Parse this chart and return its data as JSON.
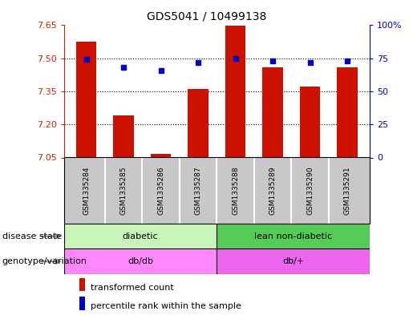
{
  "title": "GDS5041 / 10499138",
  "samples": [
    "GSM1335284",
    "GSM1335285",
    "GSM1335286",
    "GSM1335287",
    "GSM1335288",
    "GSM1335289",
    "GSM1335290",
    "GSM1335291"
  ],
  "transformed_count": [
    7.575,
    7.24,
    7.065,
    7.36,
    7.648,
    7.46,
    7.37,
    7.46
  ],
  "percentile_rank": [
    74,
    68,
    66,
    72,
    75,
    73,
    72,
    73
  ],
  "ylim_left": [
    7.05,
    7.65
  ],
  "ylim_right": [
    0,
    100
  ],
  "yticks_left": [
    7.05,
    7.2,
    7.35,
    7.5,
    7.65
  ],
  "yticks_right": [
    0,
    25,
    50,
    75,
    100
  ],
  "disease_state": [
    {
      "label": "diabetic",
      "start": 0,
      "end": 4,
      "color": "#c8f5b8"
    },
    {
      "label": "lean non-diabetic",
      "start": 4,
      "end": 8,
      "color": "#55cc55"
    }
  ],
  "genotype": [
    {
      "label": "db/db",
      "start": 0,
      "end": 4,
      "color": "#ff88ff"
    },
    {
      "label": "db/+",
      "start": 4,
      "end": 8,
      "color": "#ee66ee"
    }
  ],
  "bar_color": "#cc1100",
  "dot_color": "#0000cc",
  "axis_left_color": "#cc2200",
  "axis_right_color": "#0000cc",
  "xlabels_bg": "#c8c8c8",
  "plot_bg_color": "#ffffff",
  "border_color": "#000000"
}
